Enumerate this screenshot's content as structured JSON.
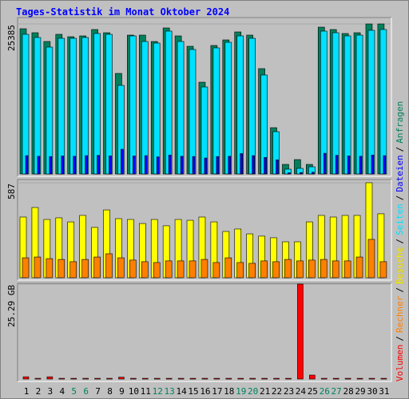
{
  "chart_data": [
    {
      "type": "bar",
      "title": "Tages-Statistik im Monat Oktober 2024",
      "categories": [
        "1",
        "2",
        "3",
        "4",
        "5",
        "6",
        "7",
        "8",
        "9",
        "10",
        "11",
        "12",
        "13",
        "14",
        "15",
        "16",
        "17",
        "18",
        "19",
        "20",
        "21",
        "22",
        "23",
        "24",
        "25",
        "26",
        "27",
        "28",
        "29",
        "30",
        "31"
      ],
      "label_colors": [
        "#000000",
        "#000000",
        "#000000",
        "#000000",
        "#00805c",
        "#00805c",
        "#000000",
        "#000000",
        "#000000",
        "#000000",
        "#000000",
        "#00805c",
        "#00805c",
        "#000000",
        "#000000",
        "#000000",
        "#000000",
        "#000000",
        "#00805c",
        "#00805c",
        "#000000",
        "#000000",
        "#000000",
        "#000000",
        "#000000",
        "#00805c",
        "#00805c",
        "#000000",
        "#000000",
        "#000000",
        "#000000"
      ],
      "legend_separator": "/",
      "ylim": [
        0,
        25385
      ],
      "yticks": [
        25385
      ],
      "series": [
        {
          "name": "Anfragen",
          "color": "#00805c",
          "values": [
            24575,
            23900,
            22414,
            23630,
            23224,
            23360,
            24440,
            23900,
            17013,
            23495,
            23495,
            22414,
            24710,
            23360,
            21604,
            15528,
            21739,
            22684,
            24035,
            23495,
            17823,
            7831,
            1620,
            2430,
            1620,
            24845,
            24440,
            23765,
            23900,
            25385,
            25385
          ]
        },
        {
          "name": "Seiten",
          "color": "#00e0ff",
          "values": [
            23630,
            23090,
            21469,
            22954,
            22954,
            23090,
            23765,
            23630,
            14988,
            23360,
            22414,
            22144,
            24170,
            22414,
            21064,
            14718,
            21334,
            22279,
            23360,
            22954,
            16743,
            7156,
            810,
            945,
            1215,
            24170,
            23900,
            23360,
            23495,
            24305,
            24440
          ]
        },
        {
          "name": "Dateien",
          "color": "#0000ff",
          "values": [
            3100,
            3000,
            2950,
            3050,
            3000,
            3100,
            3150,
            3050,
            4186,
            3050,
            3100,
            2900,
            3200,
            3000,
            2950,
            2700,
            2950,
            3000,
            3450,
            3100,
            2800,
            2400,
            200,
            250,
            300,
            3500,
            3150,
            3050,
            3000,
            3200,
            3100
          ]
        }
      ]
    },
    {
      "type": "bar",
      "categories": [
        "1",
        "2",
        "3",
        "4",
        "5",
        "6",
        "7",
        "8",
        "9",
        "10",
        "11",
        "12",
        "13",
        "14",
        "15",
        "16",
        "17",
        "18",
        "19",
        "20",
        "21",
        "22",
        "23",
        "24",
        "25",
        "26",
        "27",
        "28",
        "29",
        "30",
        "31"
      ],
      "ylim": [
        0,
        587
      ],
      "yticks": [
        587
      ],
      "series": [
        {
          "name": "Besuche",
          "color": "#ffff00",
          "values": [
            375,
            434,
            360,
            370,
            345,
            385,
            311,
            419,
            365,
            360,
            335,
            360,
            321,
            360,
            355,
            375,
            345,
            286,
            301,
            271,
            257,
            247,
            222,
            222,
            345,
            385,
            375,
            385,
            385,
            587,
            395
          ]
        },
        {
          "name": "Rechner",
          "color": "#ff8000",
          "values": [
            123,
            128,
            118,
            113,
            99,
            113,
            128,
            148,
            123,
            109,
            99,
            94,
            104,
            104,
            104,
            113,
            94,
            123,
            94,
            89,
            104,
            99,
            113,
            104,
            109,
            113,
            104,
            104,
            128,
            237,
            99
          ]
        }
      ]
    },
    {
      "type": "bar",
      "categories": [
        "1",
        "2",
        "3",
        "4",
        "5",
        "6",
        "7",
        "8",
        "9",
        "10",
        "11",
        "12",
        "13",
        "14",
        "15",
        "16",
        "17",
        "18",
        "19",
        "20",
        "21",
        "22",
        "23",
        "24",
        "25",
        "26",
        "27",
        "28",
        "29",
        "30",
        "31"
      ],
      "ylim": [
        0,
        25.29
      ],
      "yticks": [
        {
          "value": 25.29,
          "label": "25.29 GB"
        }
      ],
      "series": [
        {
          "name": "Volumen",
          "color": "#ff0000",
          "values": [
            0.6,
            0.2,
            0.6,
            0.2,
            0.2,
            0.2,
            0.2,
            0.2,
            0.5,
            0.2,
            0.2,
            0.2,
            0.2,
            0.2,
            0.2,
            0.2,
            0.2,
            0.2,
            0.2,
            0.2,
            0.2,
            0.2,
            0.2,
            25.29,
            1.06,
            0.2,
            0.2,
            0.2,
            0.2,
            0.2,
            0.2
          ]
        }
      ]
    }
  ]
}
